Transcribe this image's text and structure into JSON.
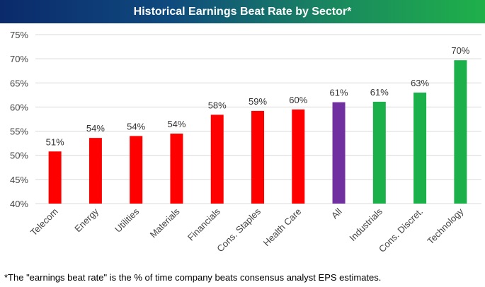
{
  "chart_data": {
    "type": "bar",
    "title": "Historical Earnings Beat Rate by Sector*",
    "categories": [
      "Telecom",
      "Energy",
      "Utilities",
      "Materials",
      "Financials",
      "Cons. Staples",
      "Health Care",
      "All",
      "Industrials",
      "Cons. Discret.",
      "Technology"
    ],
    "values": [
      51,
      54,
      54,
      54,
      58,
      59,
      60,
      61,
      61,
      63,
      70
    ],
    "data_labels": [
      "51%",
      "54%",
      "54%",
      "54%",
      "58%",
      "59%",
      "60%",
      "61%",
      "61%",
      "63%",
      "70%"
    ],
    "bar_values": [
      50.8,
      53.6,
      54.0,
      54.5,
      58.4,
      59.2,
      59.5,
      61.0,
      61.1,
      63.0,
      69.7
    ],
    "bar_colors": [
      "#ff0000",
      "#ff0000",
      "#ff0000",
      "#ff0000",
      "#ff0000",
      "#ff0000",
      "#ff0000",
      "#7030a0",
      "#1cb04b",
      "#1cb04b",
      "#1cb04b"
    ],
    "ylim": [
      40,
      75
    ],
    "yticks": [
      40,
      45,
      50,
      55,
      60,
      65,
      70,
      75
    ],
    "ytick_labels": [
      "40%",
      "45%",
      "50%",
      "55%",
      "60%",
      "65%",
      "70%",
      "75%"
    ],
    "xlabel": "",
    "ylabel": "",
    "grid": true,
    "legend": "none"
  },
  "footnote": "*The \"earnings beat rate\" is the % of time company beats consensus analyst EPS estimates."
}
